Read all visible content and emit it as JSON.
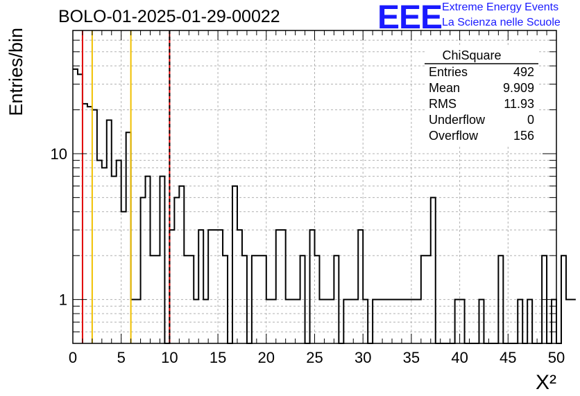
{
  "header": {
    "run_title": "BOLO-01-2025-01-29-00022",
    "logo": "EEE",
    "logo_line1": "Extreme Energy Events",
    "logo_line2": "La Scienza nelle Scuole"
  },
  "stats_box": {
    "title": "ChiSquare",
    "rows": [
      {
        "label": "Entries",
        "value": "492"
      },
      {
        "label": "Mean",
        "value": "9.909"
      },
      {
        "label": "RMS",
        "value": "11.93"
      },
      {
        "label": "Underflow",
        "value": "0"
      },
      {
        "label": "Overflow",
        "value": "156"
      }
    ]
  },
  "colors": {
    "red_line": "#e00000",
    "yellow_line": "#f0c000",
    "histogram": "#000000",
    "grid": "#b0b0b0",
    "logo": "#1a1aff"
  },
  "chart_data": {
    "type": "histogram",
    "xlabel": "X²",
    "ylabel": "Entries/bin",
    "xlim": [
      0,
      50
    ],
    "ylim": [
      0.5,
      70
    ],
    "y_scale": "log",
    "grid": true,
    "x_ticks": [
      0,
      5,
      10,
      15,
      20,
      25,
      30,
      35,
      40,
      45,
      50
    ],
    "x_tick_labels": [
      "0",
      "5",
      "10",
      "15",
      "20",
      "25",
      "30",
      "35",
      "40",
      "45",
      "50"
    ],
    "y_ticks": [
      1,
      10
    ],
    "y_tick_labels": [
      "1",
      "10"
    ],
    "bin_width": 0.5,
    "bin_start": 0,
    "values": [
      38,
      35,
      22,
      21,
      20,
      9,
      8,
      17,
      7,
      9,
      4,
      14,
      1,
      1,
      5,
      7,
      2,
      2,
      7,
      0,
      3,
      5,
      6,
      2,
      2,
      1,
      3,
      1,
      3,
      3,
      3,
      2,
      0,
      6,
      3,
      2,
      0,
      2,
      2,
      2,
      1,
      1,
      3,
      3,
      1,
      1,
      1,
      2,
      0,
      3,
      2,
      1,
      1,
      1,
      2,
      0,
      1,
      1,
      1,
      3,
      1,
      0,
      1,
      1,
      1,
      1,
      1,
      1,
      1,
      1,
      1,
      1,
      2,
      2,
      5,
      0,
      0,
      0,
      0,
      1,
      1,
      0,
      0,
      0,
      1,
      0,
      0,
      0,
      2,
      0,
      0,
      0,
      1,
      0,
      1,
      0,
      0,
      2,
      0,
      1,
      0,
      2,
      1,
      1
    ],
    "vertical_lines": [
      {
        "x": 1,
        "color": "red",
        "style": "solid"
      },
      {
        "x": 2,
        "color": "yellow",
        "style": "solid"
      },
      {
        "x": 6,
        "color": "yellow",
        "style": "solid"
      },
      {
        "x": 10,
        "color": "red",
        "style": "dashed"
      }
    ]
  }
}
